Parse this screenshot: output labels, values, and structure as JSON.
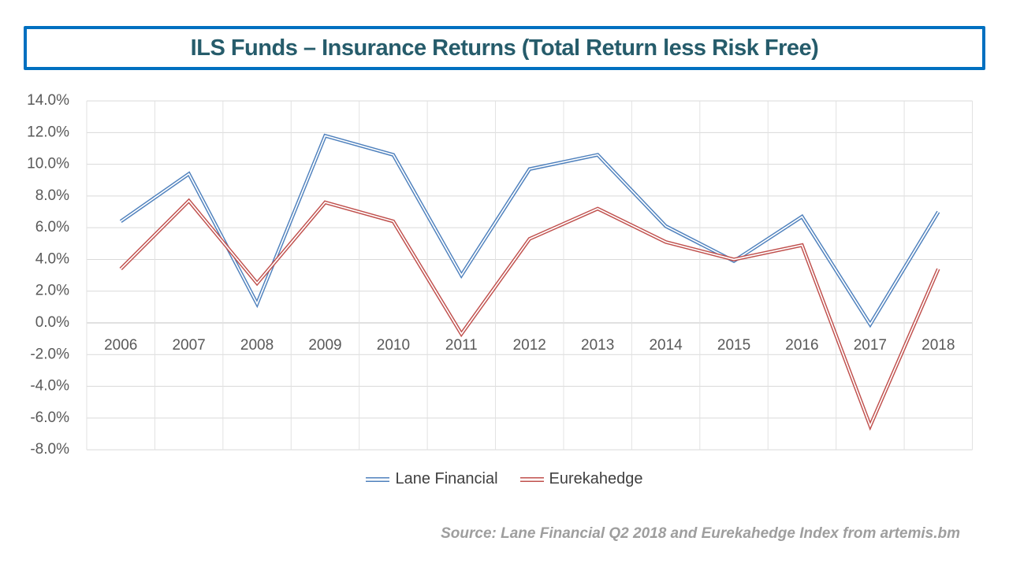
{
  "title": {
    "text": "ILS Funds – Insurance Returns (Total Return less Risk Free)",
    "text_color": "#265C6B",
    "border_color": "#0070C0"
  },
  "chart_data": {
    "type": "line",
    "categories": [
      "2006",
      "2007",
      "2008",
      "2009",
      "2010",
      "2011",
      "2012",
      "2013",
      "2014",
      "2015",
      "2016",
      "2017",
      "2018"
    ],
    "series": [
      {
        "name": "Lane Financial",
        "color": "#4F81BD",
        "values": [
          6.4,
          9.4,
          1.2,
          11.8,
          10.6,
          3.0,
          9.7,
          10.6,
          6.1,
          3.9,
          6.7,
          -0.1,
          7.0
        ]
      },
      {
        "name": "Eurekahedge",
        "color": "#C0504D",
        "values": [
          3.4,
          7.7,
          2.5,
          7.6,
          6.4,
          -0.7,
          5.3,
          7.2,
          5.1,
          4.0,
          4.9,
          -6.5,
          3.4
        ]
      }
    ],
    "title": "ILS Funds – Insurance Returns (Total Return less Risk Free)",
    "xlabel": "",
    "ylabel": "",
    "ylim": [
      -8,
      14
    ],
    "ytick_step": 2,
    "ytick_format": "percent_one_decimal",
    "grid": true,
    "legend_position": "bottom",
    "line_style": "double-stroke",
    "gridline_color": "#D9D9D9",
    "axis_line_color": "#C3C3C3",
    "tick_label_color": "#595959"
  },
  "source_note": "Source: Lane Financial Q2 2018 and Eurekahedge Index from artemis.bm"
}
